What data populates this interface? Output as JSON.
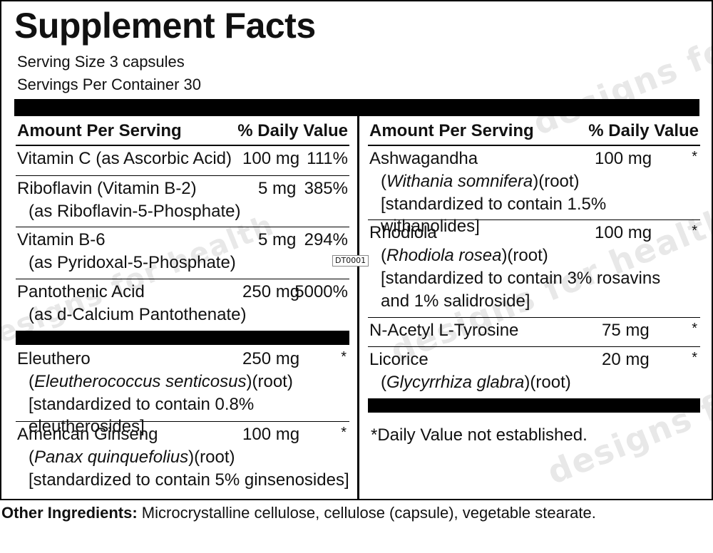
{
  "watermark": "designs for health",
  "title": "Supplement Facts",
  "serving_size": "Serving Size 3 capsules",
  "servings_per_container": "Servings Per Container 30",
  "headers": {
    "amount": "Amount Per Serving",
    "dv": "% Daily Value"
  },
  "left": [
    {
      "name": "Vitamin C (as Ascorbic Acid)",
      "amount": "100 mg",
      "dv": "111%"
    },
    {
      "name": "Riboflavin (Vitamin B-2)",
      "sub": "(as Riboflavin-5-Phosphate)",
      "amount": "5 mg",
      "dv": "385%"
    },
    {
      "name": "Vitamin B-6",
      "sub": "(as Pyridoxal-5-Phosphate)",
      "amount": "5 mg",
      "dv": "294%"
    },
    {
      "name": "Pantothenic Acid",
      "sub": "(as d-Calcium Pantothenate)",
      "amount": "250 mg",
      "dv": "5000%"
    },
    {
      "name": "Eleuthero",
      "latin": "Eleutherococcus senticosus",
      "part": ")(root)",
      "std": "[standardized to contain 0.8% eleutherosides]",
      "amount": "250 mg",
      "dv": "*"
    },
    {
      "name": "American Ginseng",
      "latin": "Panax quinquefolius",
      "part": ")(root)",
      "std": "[standardized to contain 5% ginsenosides]",
      "amount": "100 mg",
      "dv": "*"
    }
  ],
  "right": [
    {
      "name": "Ashwagandha",
      "latin": "Withania somnifera",
      "part": ")(root)",
      "std": "[standardized to contain 1.5% withanolides]",
      "amount": "100 mg",
      "dv": "*"
    },
    {
      "name": "Rhodiola",
      "latin": "Rhodiola rosea",
      "part": ")(root)",
      "std": "[standardized to contain 3% rosavins",
      "std2": "and 1% salidroside]",
      "amount": "100 mg",
      "dv": "*"
    },
    {
      "name": "N-Acetyl L-Tyrosine",
      "amount": "75 mg",
      "dv": "*"
    },
    {
      "name": "Licorice",
      "latin": "Glycyrrhiza glabra",
      "part": ")(root)",
      "amount": "20 mg",
      "dv": "*"
    }
  ],
  "footnote": "*Daily Value not established.",
  "other_label": "Other Ingredients:",
  "other_text": " Microcrystalline cellulose, cellulose (capsule), vegetable stearate.",
  "product_code": "DT0001",
  "open_paren": "("
}
